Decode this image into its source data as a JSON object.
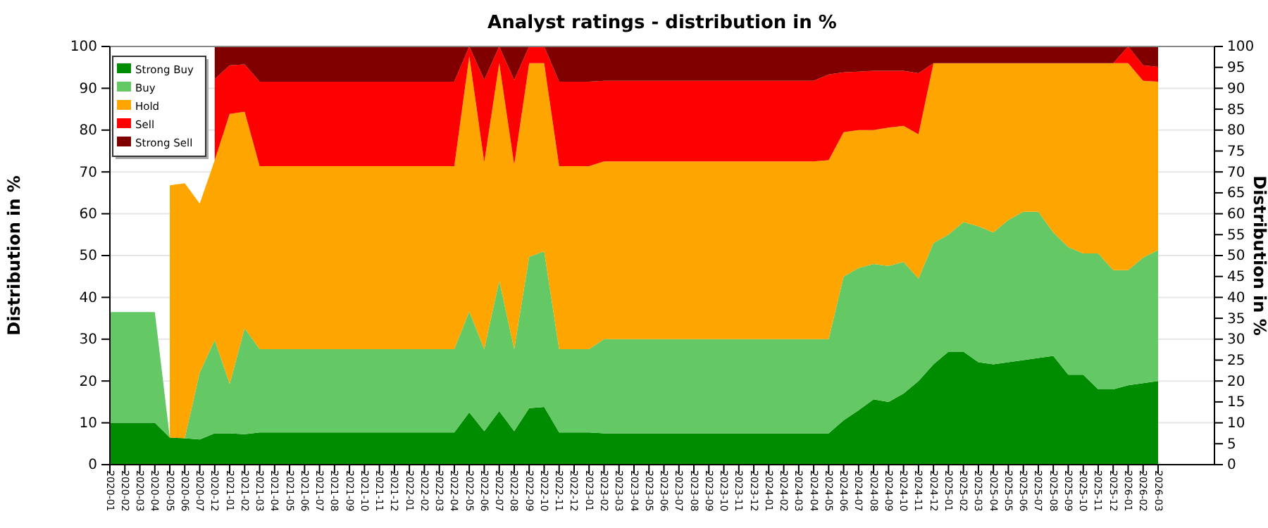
{
  "chart_data": {
    "type": "area",
    "stacked": true,
    "title": "Analyst ratings - distribution in %",
    "ylabel": "Distribution in %",
    "y2label": "Distribution in %",
    "categories": [
      "2020-01",
      "2020-02",
      "2020-03",
      "2020-04",
      "2020-05",
      "2020-06",
      "2020-07",
      "2020-12",
      "2021-01",
      "2021-02",
      "2021-03",
      "2021-04",
      "2021-05",
      "2021-06",
      "2021-07",
      "2021-08",
      "2021-09",
      "2021-10",
      "2021-11",
      "2021-12",
      "2022-01",
      "2022-02",
      "2022-03",
      "2022-04",
      "2022-05",
      "2022-06",
      "2022-07",
      "2022-08",
      "2022-09",
      "2022-10",
      "2022-11",
      "2022-12",
      "2023-01",
      "2023-02",
      "2023-03",
      "2023-04",
      "2023-05",
      "2023-06",
      "2023-07",
      "2023-08",
      "2023-09",
      "2023-10",
      "2023-11",
      "2023-12",
      "2024-01",
      "2024-02",
      "2024-03",
      "2024-04",
      "2024-05",
      "2024-06",
      "2024-07",
      "2024-08",
      "2024-09",
      "2024-10",
      "2024-11",
      "2024-12",
      "2025-01",
      "2025-02",
      "2025-03",
      "2025-04",
      "2025-05",
      "2025-06",
      "2025-07",
      "2025-08",
      "2025-09",
      "2025-10",
      "2025-11",
      "2025-12",
      "2026-01",
      "2026-02",
      "2026-03"
    ],
    "ylim": [
      0,
      100
    ],
    "yticks": [
      0,
      10,
      20,
      30,
      40,
      50,
      60,
      70,
      80,
      90,
      100
    ],
    "y2lim": [
      0,
      100
    ],
    "y2ticks": [
      0,
      5,
      10,
      15,
      20,
      25,
      30,
      35,
      40,
      45,
      50,
      55,
      60,
      65,
      70,
      75,
      80,
      85,
      90,
      95,
      100
    ],
    "grid": "y",
    "legend": "top left",
    "series": [
      {
        "name": "Strong Buy",
        "color": "#008c00",
        "values": [
          10,
          10,
          10,
          10,
          6.5,
          6.3,
          6,
          7.5,
          7.5,
          7.3,
          7.7,
          7.7,
          7.7,
          7.7,
          7.7,
          7.7,
          7.7,
          7.7,
          7.7,
          7.7,
          7.7,
          7.7,
          7.7,
          7.7,
          12.5,
          8,
          12.8,
          8,
          13.5,
          13.8,
          7.7,
          7.7,
          7.7,
          7.5,
          7.5,
          7.5,
          7.5,
          7.5,
          7.5,
          7.5,
          7.5,
          7.5,
          7.5,
          7.5,
          7.5,
          7.5,
          7.5,
          7.5,
          7.5,
          10.6,
          13,
          15.6,
          15,
          17,
          20,
          24,
          27,
          27,
          24.5,
          24,
          24.5,
          25,
          25.5,
          26,
          21.5,
          21.5,
          18,
          18,
          19,
          19.5,
          20
        ]
      },
      {
        "name": "Buy",
        "color": "#64c864",
        "values": [
          26.5,
          26.5,
          26.5,
          26.5,
          0,
          0,
          16,
          22.3,
          11.8,
          25.3,
          19.9,
          19.9,
          19.9,
          19.9,
          19.9,
          19.9,
          19.9,
          19.9,
          19.9,
          19.9,
          19.9,
          19.9,
          19.9,
          19.9,
          24.1,
          19.6,
          31.2,
          19.6,
          36.2,
          37.2,
          19.9,
          19.9,
          19.9,
          22.5,
          22.5,
          22.5,
          22.5,
          22.5,
          22.5,
          22.5,
          22.5,
          22.5,
          22.5,
          22.5,
          22.5,
          22.5,
          22.5,
          22.5,
          22.5,
          34.4,
          34,
          32.4,
          32.5,
          31.5,
          24.5,
          29,
          28,
          31,
          32.5,
          31.5,
          34,
          35.5,
          35,
          29.5,
          30.5,
          29,
          32.5,
          28.5,
          27.5,
          30,
          31.3
        ]
      },
      {
        "name": "Hold",
        "color": "#ffa500",
        "values": [
          null,
          null,
          null,
          null,
          60.3,
          61,
          40.4,
          43,
          64.6,
          51.8,
          43.8,
          43.8,
          43.8,
          43.8,
          43.8,
          43.8,
          43.8,
          43.8,
          43.8,
          43.8,
          43.8,
          43.8,
          43.8,
          43.8,
          61.1,
          44.7,
          52,
          44.1,
          46.3,
          45,
          43.8,
          43.8,
          43.8,
          42.5,
          42.5,
          42.5,
          42.5,
          42.5,
          42.5,
          42.5,
          42.5,
          42.5,
          42.5,
          42.5,
          42.5,
          42.5,
          42.5,
          42.5,
          42.8,
          34.5,
          33,
          32,
          33.1,
          32.5,
          34.5,
          43,
          41,
          38,
          39,
          40.5,
          37.5,
          35.5,
          35.5,
          40.5,
          44,
          45.5,
          45.5,
          49.5,
          49.5,
          42.3,
          40.3
        ]
      },
      {
        "name": "Sell",
        "color": "#ff0000",
        "values": [
          null,
          null,
          null,
          null,
          null,
          null,
          null,
          19.4,
          11.6,
          11.3,
          20.2,
          20.2,
          20.2,
          20.2,
          20.2,
          20.2,
          20.2,
          20.2,
          20.2,
          20.2,
          20.2,
          20.2,
          20.2,
          20.2,
          2.3,
          19.7,
          4,
          20.3,
          4,
          4,
          20.2,
          20.2,
          20.2,
          19.3,
          19.3,
          19.3,
          19.3,
          19.3,
          19.3,
          19.3,
          19.3,
          19.3,
          19.3,
          19.3,
          19.3,
          19.3,
          19.3,
          19.3,
          20.5,
          14.3,
          14,
          14.2,
          13.6,
          13.2,
          14.6,
          0,
          0,
          0,
          0,
          0,
          0,
          0,
          0,
          0,
          0,
          0,
          0,
          0,
          4,
          3.7,
          3.5
        ]
      },
      {
        "name": "Strong Sell",
        "color": "#800000",
        "values": [
          null,
          null,
          null,
          null,
          null,
          null,
          null,
          7.8,
          4.5,
          4.3,
          8.4,
          8.4,
          8.4,
          8.4,
          8.4,
          8.4,
          8.4,
          8.4,
          8.4,
          8.4,
          8.4,
          8.4,
          8.4,
          8.4,
          0,
          8,
          0,
          8,
          0,
          0,
          8.4,
          8.4,
          8.4,
          8.2,
          8.2,
          8.2,
          8.2,
          8.2,
          8.2,
          8.2,
          8.2,
          8.2,
          8.2,
          8.2,
          8.2,
          8.2,
          8.2,
          8.2,
          6.7,
          6.2,
          6,
          5.8,
          5.8,
          5.8,
          6.4,
          4,
          4,
          4,
          4,
          4,
          4,
          4,
          4,
          4,
          4,
          4,
          4,
          4,
          0,
          4.5,
          4.9
        ]
      }
    ]
  }
}
